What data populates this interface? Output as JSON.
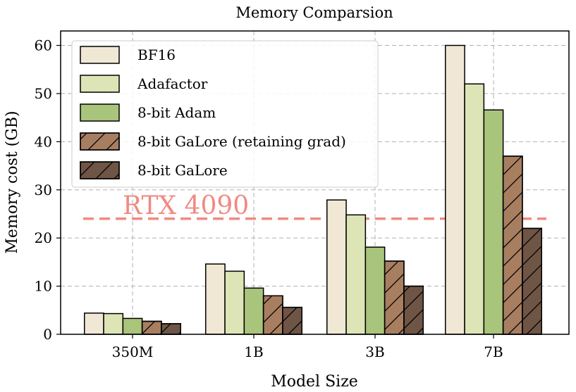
{
  "chart_data": {
    "type": "bar",
    "title": "Memory Comparsion",
    "xlabel": "Model Size",
    "ylabel": "Memory cost (GB)",
    "ylim": [
      0,
      63
    ],
    "yticks": [
      0,
      10,
      20,
      30,
      40,
      50,
      60
    ],
    "grid": true,
    "legend_position": "top-left",
    "categories": [
      "350M",
      "1B",
      "3B",
      "7B"
    ],
    "series": [
      {
        "name": "BF16",
        "values": [
          4.4,
          14.6,
          27.9,
          60
        ],
        "color": "#f0e8d5",
        "hatch": false
      },
      {
        "name": "Adafactor",
        "values": [
          4.3,
          13.1,
          24.8,
          52
        ],
        "color": "#dde5b7",
        "hatch": false
      },
      {
        "name": "8-bit Adam",
        "values": [
          3.3,
          9.6,
          18.1,
          46.6
        ],
        "color": "#a9c47b",
        "hatch": false
      },
      {
        "name": "8-bit GaLore (retaining grad)",
        "values": [
          2.7,
          8.0,
          15.2,
          37
        ],
        "color": "#a87e60",
        "hatch": true
      },
      {
        "name": "8-bit GaLore",
        "values": [
          2.2,
          5.6,
          10.0,
          22
        ],
        "color": "#6e5546",
        "hatch": true
      }
    ],
    "reference_line": {
      "label": "RTX 4090",
      "value": 24,
      "color": "#f08a82"
    }
  }
}
